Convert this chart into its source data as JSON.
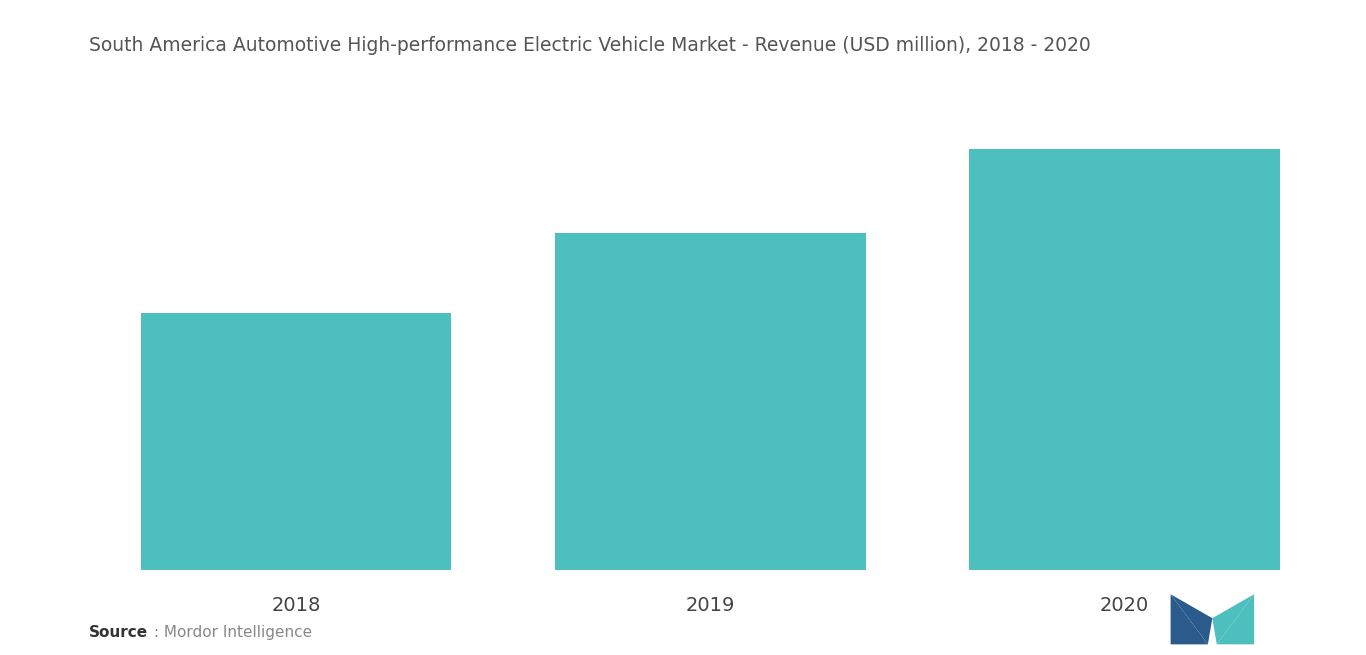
{
  "title": "South America Automotive High-performance Electric Vehicle Market - Revenue (USD million), 2018 - 2020",
  "categories": [
    "2018",
    "2019",
    "2020"
  ],
  "values": [
    55,
    72,
    90
  ],
  "bar_color": "#4DBFBF",
  "background_color": "#ffffff",
  "title_color": "#555555",
  "title_fontsize": 13.5,
  "tick_label_color": "#444444",
  "tick_fontsize": 14,
  "source_bold": "Source",
  "source_normal": " : Mordor Intelligence",
  "bar_width": 0.75,
  "ylim": [
    0,
    105
  ],
  "xlim": [
    -0.5,
    2.5
  ],
  "logo_dark": "#2B5B8C",
  "logo_teal": "#4DBFBF"
}
